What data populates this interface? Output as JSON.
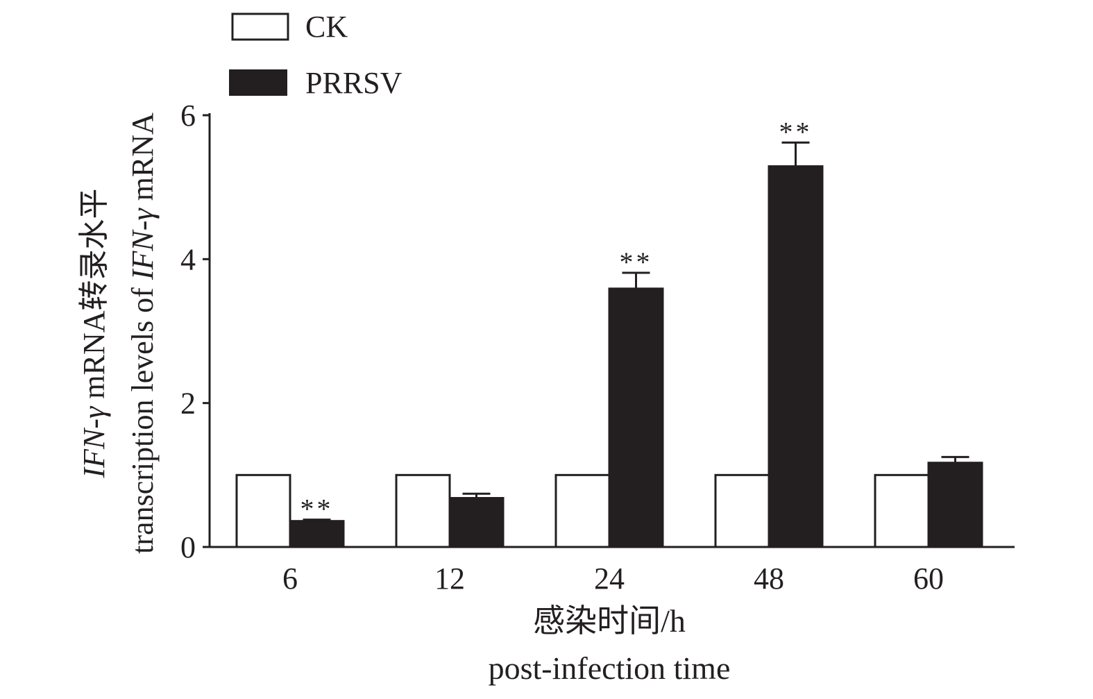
{
  "chart_data": {
    "type": "bar",
    "categories": [
      "6",
      "12",
      "24",
      "48",
      "60"
    ],
    "series": [
      {
        "name": "CK",
        "values": [
          1.0,
          1.0,
          1.0,
          1.0,
          1.0
        ],
        "errors": [
          0,
          0,
          0,
          0,
          0
        ],
        "color": "#ffffff"
      },
      {
        "name": "PRRSV",
        "values": [
          0.36,
          0.68,
          3.59,
          5.29,
          1.17
        ],
        "errors": [
          0.02,
          0.06,
          0.22,
          0.33,
          0.08
        ],
        "color": "#231f20"
      }
    ],
    "significance": [
      "**",
      "",
      "**",
      "**",
      ""
    ],
    "ylim": [
      0,
      6
    ],
    "yticks": [
      "0",
      "2",
      "4",
      "6"
    ],
    "ylabel_cn_prefix": "IFN-γ",
    "ylabel_cn": " mRNA转录水平",
    "ylabel_en": "transcription levels of ",
    "ylabel_en_suffix": "IFN-γ",
    "ylabel_en_end": " mRNA",
    "xlabel_cn": "感染时间/h",
    "xlabel_en": "post-infection time",
    "legend_position": "top-left",
    "grid": false
  }
}
